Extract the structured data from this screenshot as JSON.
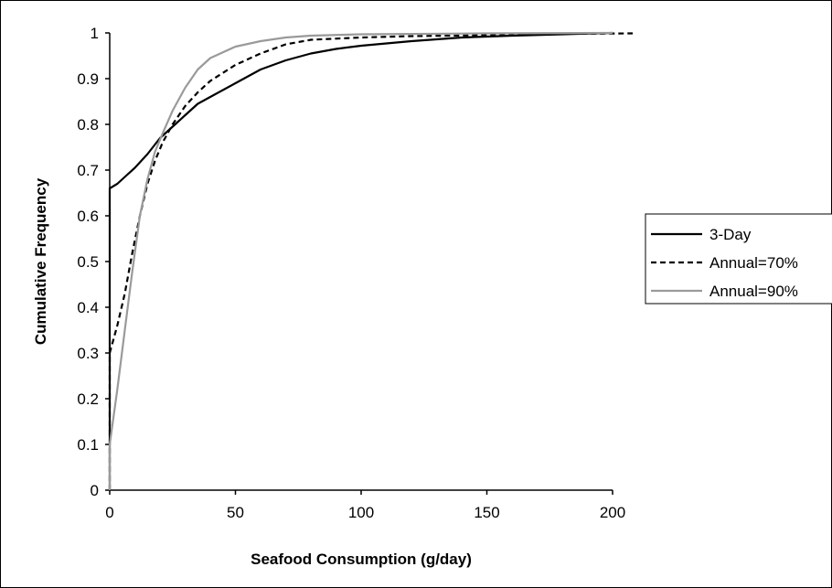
{
  "chart_data": {
    "type": "line",
    "title": "",
    "xlabel": "Seafood Consumption (g/day)",
    "ylabel": "Cumulative Frequency",
    "xlim": [
      0,
      200
    ],
    "ylim": [
      0,
      1
    ],
    "x_ticks": [
      "0",
      "50",
      "100",
      "150",
      "200"
    ],
    "y_ticks": [
      "0",
      "0.1",
      "0.2",
      "0.3",
      "0.4",
      "0.5",
      "0.6",
      "0.7",
      "0.8",
      "0.9",
      "1"
    ],
    "grid": false,
    "legend_position": "right",
    "series": [
      {
        "name": "3-Day",
        "color": "#000000",
        "style": "solid",
        "x": [
          0,
          0,
          3,
          6,
          10,
          15,
          20,
          25,
          30,
          35,
          40,
          50,
          60,
          70,
          80,
          90,
          100,
          120,
          140,
          160,
          180,
          200
        ],
        "y": [
          0,
          0.66,
          0.67,
          0.685,
          0.705,
          0.735,
          0.77,
          0.795,
          0.82,
          0.845,
          0.86,
          0.89,
          0.92,
          0.94,
          0.955,
          0.965,
          0.972,
          0.982,
          0.99,
          0.994,
          0.997,
          1.0
        ]
      },
      {
        "name": "Annual=70%",
        "color": "#000000",
        "style": "dashed",
        "x": [
          0,
          0,
          3,
          6,
          9,
          12,
          15,
          18,
          21,
          25,
          30,
          35,
          40,
          50,
          60,
          70,
          80,
          100,
          120,
          150,
          180,
          208
        ],
        "y": [
          0,
          0.3,
          0.36,
          0.43,
          0.52,
          0.6,
          0.67,
          0.72,
          0.76,
          0.8,
          0.84,
          0.87,
          0.895,
          0.93,
          0.955,
          0.975,
          0.985,
          0.99,
          0.993,
          0.995,
          0.998,
          0.999
        ]
      },
      {
        "name": "Annual=90%",
        "color": "#9a9a9a",
        "style": "solid",
        "x": [
          0,
          0,
          3,
          6,
          9,
          12,
          15,
          18,
          21,
          25,
          30,
          35,
          40,
          50,
          60,
          70,
          80,
          100,
          150,
          200
        ],
        "y": [
          0,
          0.1,
          0.22,
          0.35,
          0.48,
          0.6,
          0.68,
          0.74,
          0.78,
          0.83,
          0.88,
          0.92,
          0.945,
          0.97,
          0.982,
          0.99,
          0.994,
          0.997,
          0.999,
          1.0
        ]
      }
    ]
  }
}
